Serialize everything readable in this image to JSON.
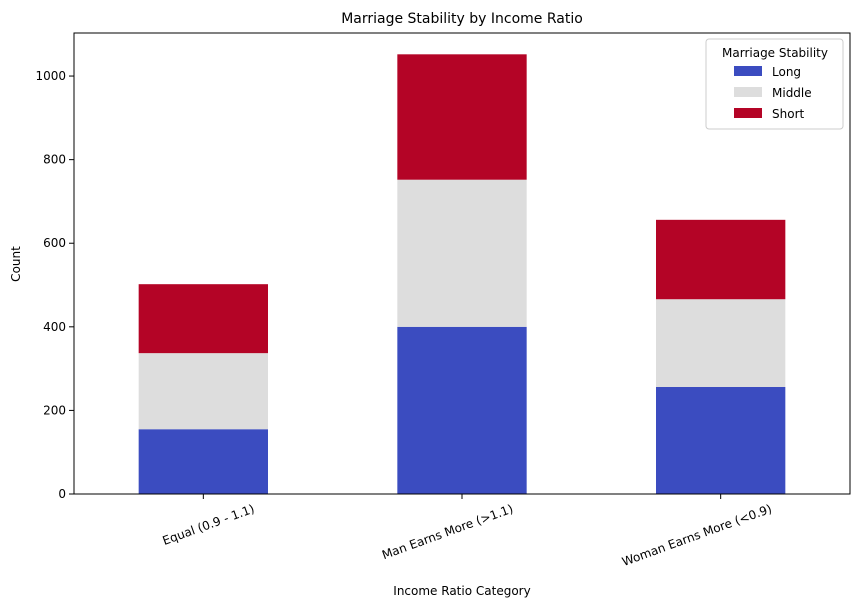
{
  "chart_data": {
    "type": "bar",
    "stacked": true,
    "title": "Marriage Stability by Income Ratio",
    "xlabel": "Income Ratio Category",
    "ylabel": "Count",
    "categories": [
      "Equal (0.9 - 1.1)",
      "Man Earns More (>1.1)",
      "Woman Earns More (<0.9)"
    ],
    "series": [
      {
        "name": "Long",
        "color": "#3b4cc0",
        "values": [
          155,
          400,
          256
        ]
      },
      {
        "name": "Middle",
        "color": "#dddddd",
        "values": [
          182,
          352,
          210
        ]
      },
      {
        "name": "Short",
        "color": "#b40426",
        "values": [
          165,
          300,
          190
        ]
      }
    ],
    "ylim": [
      0,
      1103
    ],
    "yticks": [
      0,
      200,
      400,
      600,
      800,
      1000
    ],
    "legend": {
      "title": "Marriage Stability",
      "placement": "top-right"
    },
    "grid": false
  }
}
